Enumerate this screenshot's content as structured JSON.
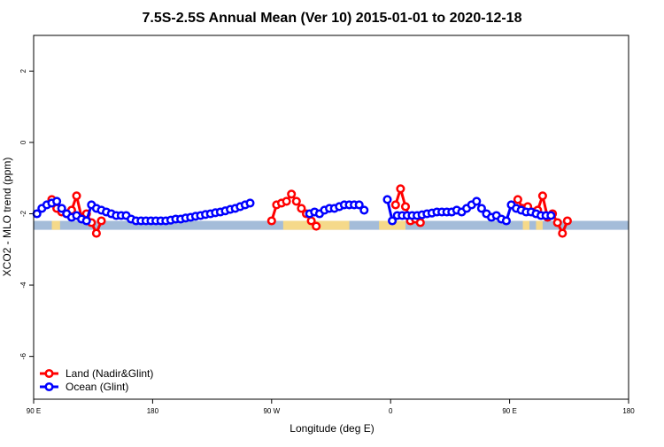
{
  "chart_data": {
    "type": "line",
    "title": "7.5S-2.5S Annual Mean (Ver 10)   2015-01-01 to 2020-12-18",
    "xlabel": "Longitude (deg E)",
    "ylabel": "XCO2 - MLO trend (ppm)",
    "xlim": [
      90,
      450
    ],
    "ylim": [
      -7.2,
      3.0
    ],
    "x_ticks": [
      {
        "value": 90,
        "label": "90 E"
      },
      {
        "value": 162,
        "label": "180"
      },
      {
        "value": 234,
        "label": "90 W"
      },
      {
        "value": 306,
        "label": "0"
      },
      {
        "value": 378,
        "label": "90 E"
      },
      {
        "value": 450,
        "label": "180"
      }
    ],
    "y_ticks": [
      {
        "value": -6,
        "label": "-6"
      },
      {
        "value": -4,
        "label": "-4"
      },
      {
        "value": -2,
        "label": "-2"
      },
      {
        "value": 0,
        "label": "0"
      },
      {
        "value": 2,
        "label": "2"
      }
    ],
    "band": {
      "y_low": -2.45,
      "y_high": -2.2
    },
    "land_segments": [
      {
        "x_start": 101,
        "x_end": 106
      },
      {
        "x_start": 241,
        "x_end": 281
      },
      {
        "x_start": 299,
        "x_end": 315
      },
      {
        "x_start": 386,
        "x_end": 390
      },
      {
        "x_start": 394,
        "x_end": 398
      }
    ],
    "series": [
      {
        "name": "Land (Nadir&Glint)",
        "color": "#ff0000",
        "segments": [
          [
            [
              101,
              -1.6
            ],
            [
              104,
              -1.85
            ],
            [
              107,
              -1.95
            ],
            [
              110,
              -2.0
            ],
            [
              113,
              -1.9
            ],
            [
              116,
              -1.5
            ],
            [
              119,
              -2.1
            ],
            [
              122,
              -2.0
            ],
            [
              125,
              -2.25
            ],
            [
              128,
              -2.55
            ],
            [
              131,
              -2.2
            ]
          ],
          [
            [
              234,
              -2.2
            ],
            [
              237,
              -1.75
            ],
            [
              240,
              -1.7
            ],
            [
              243,
              -1.65
            ],
            [
              246,
              -1.45
            ],
            [
              249,
              -1.65
            ],
            [
              252,
              -1.85
            ],
            [
              255,
              -2.0
            ],
            [
              258,
              -2.2
            ],
            [
              261,
              -2.35
            ]
          ],
          [
            [
              309,
              -1.75
            ],
            [
              312,
              -1.3
            ],
            [
              315,
              -1.8
            ],
            [
              318,
              -2.2
            ],
            [
              321,
              -2.15
            ],
            [
              324,
              -2.25
            ]
          ],
          [
            [
              383,
              -1.6
            ],
            [
              386,
              -1.85
            ],
            [
              389,
              -1.8
            ],
            [
              392,
              -1.95
            ],
            [
              395,
              -1.9
            ],
            [
              398,
              -1.5
            ],
            [
              401,
              -2.1
            ],
            [
              404,
              -2.0
            ],
            [
              407,
              -2.25
            ],
            [
              410,
              -2.55
            ],
            [
              413,
              -2.2
            ]
          ]
        ]
      },
      {
        "name": "Ocean (Glint)",
        "color": "#0000ff",
        "segments": [
          [
            [
              92,
              -2.0
            ],
            [
              95,
              -1.85
            ],
            [
              98,
              -1.75
            ],
            [
              101,
              -1.7
            ],
            [
              104,
              -1.65
            ],
            [
              107,
              -1.85
            ],
            [
              110,
              -2.0
            ],
            [
              113,
              -2.1
            ],
            [
              116,
              -2.05
            ],
            [
              119,
              -2.15
            ],
            [
              122,
              -2.2
            ],
            [
              125,
              -1.75
            ],
            [
              128,
              -1.85
            ],
            [
              131,
              -1.9
            ],
            [
              134,
              -1.95
            ],
            [
              137,
              -2.0
            ],
            [
              140,
              -2.05
            ],
            [
              143,
              -2.05
            ],
            [
              146,
              -2.05
            ],
            [
              149,
              -2.15
            ],
            [
              152,
              -2.2
            ],
            [
              155,
              -2.2
            ],
            [
              158,
              -2.2
            ],
            [
              161,
              -2.2
            ],
            [
              164,
              -2.2
            ],
            [
              167,
              -2.2
            ],
            [
              170,
              -2.2
            ],
            [
              173,
              -2.18
            ],
            [
              176,
              -2.15
            ],
            [
              179,
              -2.15
            ],
            [
              182,
              -2.12
            ],
            [
              185,
              -2.1
            ],
            [
              188,
              -2.07
            ],
            [
              191,
              -2.05
            ],
            [
              194,
              -2.02
            ],
            [
              197,
              -2.0
            ],
            [
              200,
              -1.97
            ],
            [
              203,
              -1.95
            ],
            [
              206,
              -1.92
            ],
            [
              209,
              -1.88
            ],
            [
              212,
              -1.85
            ],
            [
              215,
              -1.8
            ],
            [
              218,
              -1.75
            ],
            [
              221,
              -1.7
            ]
          ],
          [
            [
              257,
              -2.0
            ],
            [
              260,
              -1.95
            ],
            [
              263,
              -2.0
            ],
            [
              266,
              -1.9
            ],
            [
              269,
              -1.85
            ],
            [
              272,
              -1.85
            ],
            [
              275,
              -1.8
            ],
            [
              278,
              -1.75
            ],
            [
              281,
              -1.75
            ],
            [
              284,
              -1.75
            ],
            [
              287,
              -1.75
            ],
            [
              290,
              -1.9
            ]
          ],
          [
            [
              304,
              -1.6
            ],
            [
              307,
              -2.2
            ],
            [
              310,
              -2.05
            ],
            [
              313,
              -2.05
            ],
            [
              316,
              -2.05
            ],
            [
              319,
              -2.05
            ],
            [
              322,
              -2.05
            ],
            [
              325,
              -2.03
            ],
            [
              328,
              -2.0
            ],
            [
              331,
              -1.98
            ],
            [
              334,
              -1.95
            ],
            [
              337,
              -1.95
            ],
            [
              340,
              -1.95
            ],
            [
              343,
              -1.95
            ],
            [
              346,
              -1.9
            ],
            [
              349,
              -1.95
            ],
            [
              352,
              -1.85
            ],
            [
              355,
              -1.75
            ],
            [
              358,
              -1.65
            ],
            [
              361,
              -1.85
            ],
            [
              364,
              -2.0
            ],
            [
              367,
              -2.1
            ],
            [
              370,
              -2.05
            ],
            [
              373,
              -2.15
            ],
            [
              376,
              -2.2
            ],
            [
              379,
              -1.75
            ],
            [
              382,
              -1.85
            ],
            [
              385,
              -1.9
            ],
            [
              388,
              -1.95
            ],
            [
              391,
              -1.95
            ],
            [
              394,
              -2.0
            ],
            [
              397,
              -2.05
            ],
            [
              400,
              -2.05
            ],
            [
              403,
              -2.05
            ]
          ]
        ]
      }
    ],
    "legend": {
      "position": "bottom-left",
      "entries": [
        "Land (Nadir&Glint)",
        "Ocean (Glint)"
      ]
    }
  }
}
